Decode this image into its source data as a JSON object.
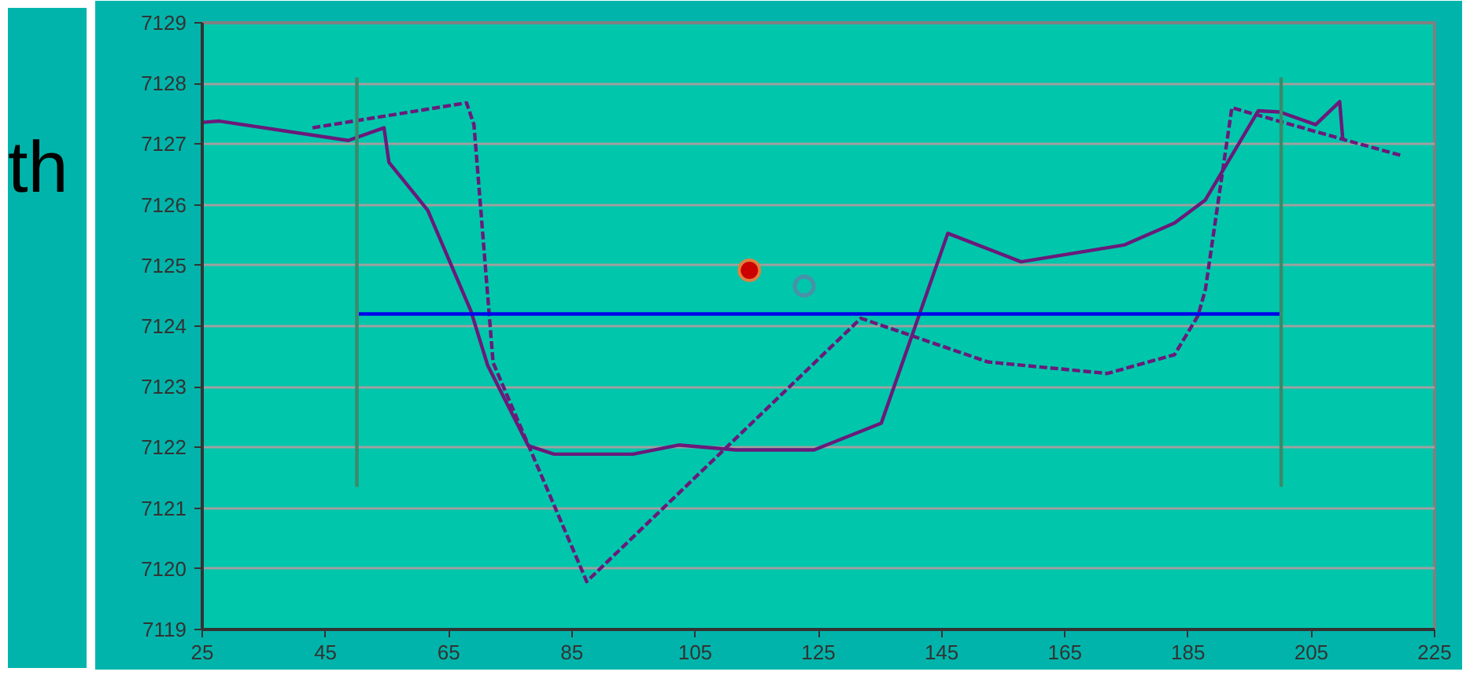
{
  "chart_data": {
    "type": "line",
    "annotations": [
      "th"
    ],
    "xlim": [
      25,
      225
    ],
    "xticks": [
      25,
      45,
      65,
      85,
      105,
      125,
      145,
      165,
      185,
      205,
      225
    ],
    "ylim": [
      7119,
      7129
    ],
    "yticks": [
      7119,
      7120,
      7121,
      7122,
      7123,
      7124,
      7125,
      7126,
      7127,
      7128,
      7129
    ],
    "grid": "y",
    "series": [
      {
        "type": "line",
        "color": "#6a1a7a",
        "line_style": "solid",
        "marker": "none",
        "x": [
          25.2,
          27.8,
          48.7,
          54.5,
          55.3,
          61.6,
          68.6,
          71.3,
          77.9,
          82.1,
          94.9,
          102.3,
          111.6,
          124.3,
          135.2,
          146.0,
          157.9,
          174.7,
          182.8,
          187.8,
          196.4,
          199.9,
          205.7,
          209.6,
          210.1
        ],
        "values": [
          7127.36,
          7127.38,
          7127.06,
          7127.27,
          7126.7,
          7125.91,
          7124.25,
          7123.36,
          7122.03,
          7121.89,
          7121.89,
          7122.04,
          7121.96,
          7121.96,
          7122.4,
          7125.53,
          7125.06,
          7125.34,
          7125.7,
          7126.08,
          7127.55,
          7127.53,
          7127.32,
          7127.7,
          7127.08
        ]
      },
      {
        "type": "line",
        "color": "#6a1a7a",
        "line_style": "dashed",
        "marker": "none",
        "x": [
          42.9,
          67.9,
          69.1,
          72.2,
          87.4,
          131.9,
          152.5,
          171.9,
          182.8,
          186.6,
          187.8,
          192.1,
          210.1,
          219.7
        ],
        "values": [
          7127.27,
          7127.68,
          7127.32,
          7123.4,
          7119.79,
          7124.13,
          7123.41,
          7123.22,
          7123.53,
          7124.17,
          7124.6,
          7127.6,
          7127.08,
          7126.81
        ]
      },
      {
        "type": "line",
        "color": "#0000ee",
        "line_style": "solid",
        "marker": "none",
        "x": [
          50.4,
          200
        ],
        "values": [
          7124.2,
          7124.2
        ]
      },
      {
        "type": "line",
        "color": "#3a8a6a",
        "line_style": "solid",
        "marker": "none",
        "x": [
          50.1,
          50.1
        ],
        "values": [
          7128.1,
          7121.35
        ]
      },
      {
        "type": "line",
        "color": "#3a8a6a",
        "line_style": "solid",
        "marker": "none",
        "x": [
          200.1,
          200.1
        ],
        "values": [
          7128.1,
          7121.35
        ]
      },
      {
        "type": "scatter",
        "color": "#cc0000",
        "marker": "circle",
        "x": [
          113.8
        ],
        "values": [
          7124.92
        ]
      },
      {
        "type": "scatter",
        "color": "#4a90a8",
        "marker": "open_circle",
        "x": [
          122.7
        ],
        "values": [
          7124.66
        ]
      }
    ]
  }
}
